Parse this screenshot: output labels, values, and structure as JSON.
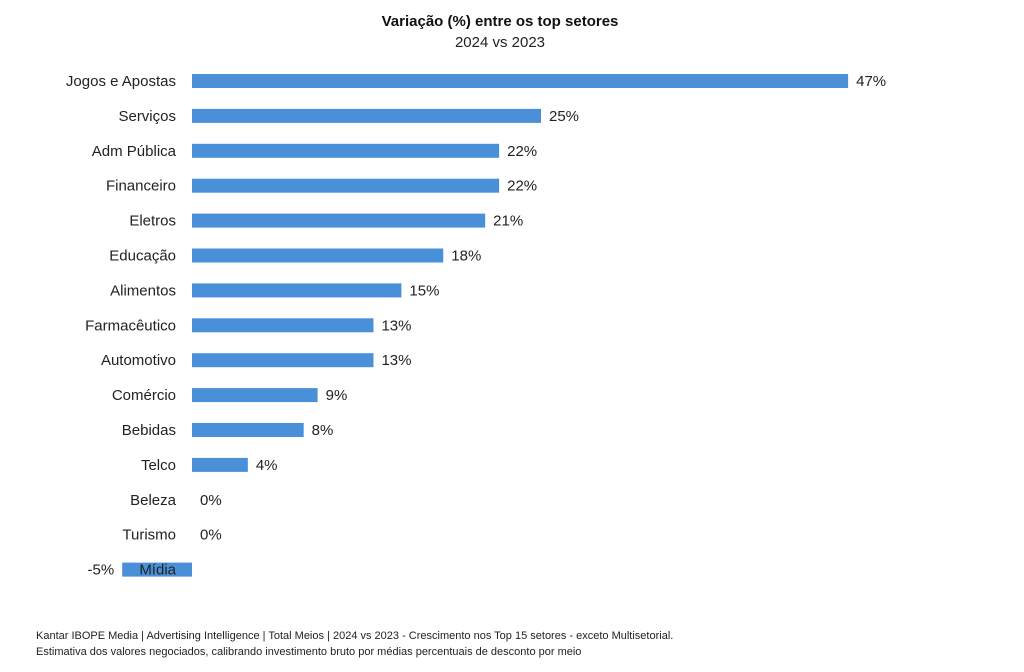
{
  "chart_data": {
    "type": "bar",
    "orientation": "horizontal",
    "title": "Variação (%) entre os top setores",
    "subtitle": "2024 vs 2023",
    "categories": [
      "Jogos e Apostas",
      "Serviços",
      "Adm Pública",
      "Financeiro",
      "Eletros",
      "Educação",
      "Alimentos",
      "Farmacêutico",
      "Automotivo",
      "Comércio",
      "Bebidas",
      "Telco",
      "Beleza",
      "Turismo",
      "Mídia"
    ],
    "values": [
      47,
      25,
      22,
      22,
      21,
      18,
      15,
      13,
      13,
      9,
      8,
      4,
      0,
      0,
      -5
    ],
    "value_labels": [
      "47%",
      "25%",
      "22%",
      "22%",
      "21%",
      "18%",
      "15%",
      "13%",
      "13%",
      "9%",
      "8%",
      "4%",
      "0%",
      "0%",
      "-5%"
    ],
    "bar_color": "#4a90d9",
    "legend": "none",
    "grid": false
  },
  "footnote": {
    "line1": "Kantar IBOPE Media | Advertising Intelligence | Total Meios | 2024 vs 2023 - Crescimento nos Top 15 setores - exceto Multisetorial.",
    "line2": "Estimativa dos valores negociados, calibrando investimento bruto por médias percentuais de desconto por meio"
  }
}
